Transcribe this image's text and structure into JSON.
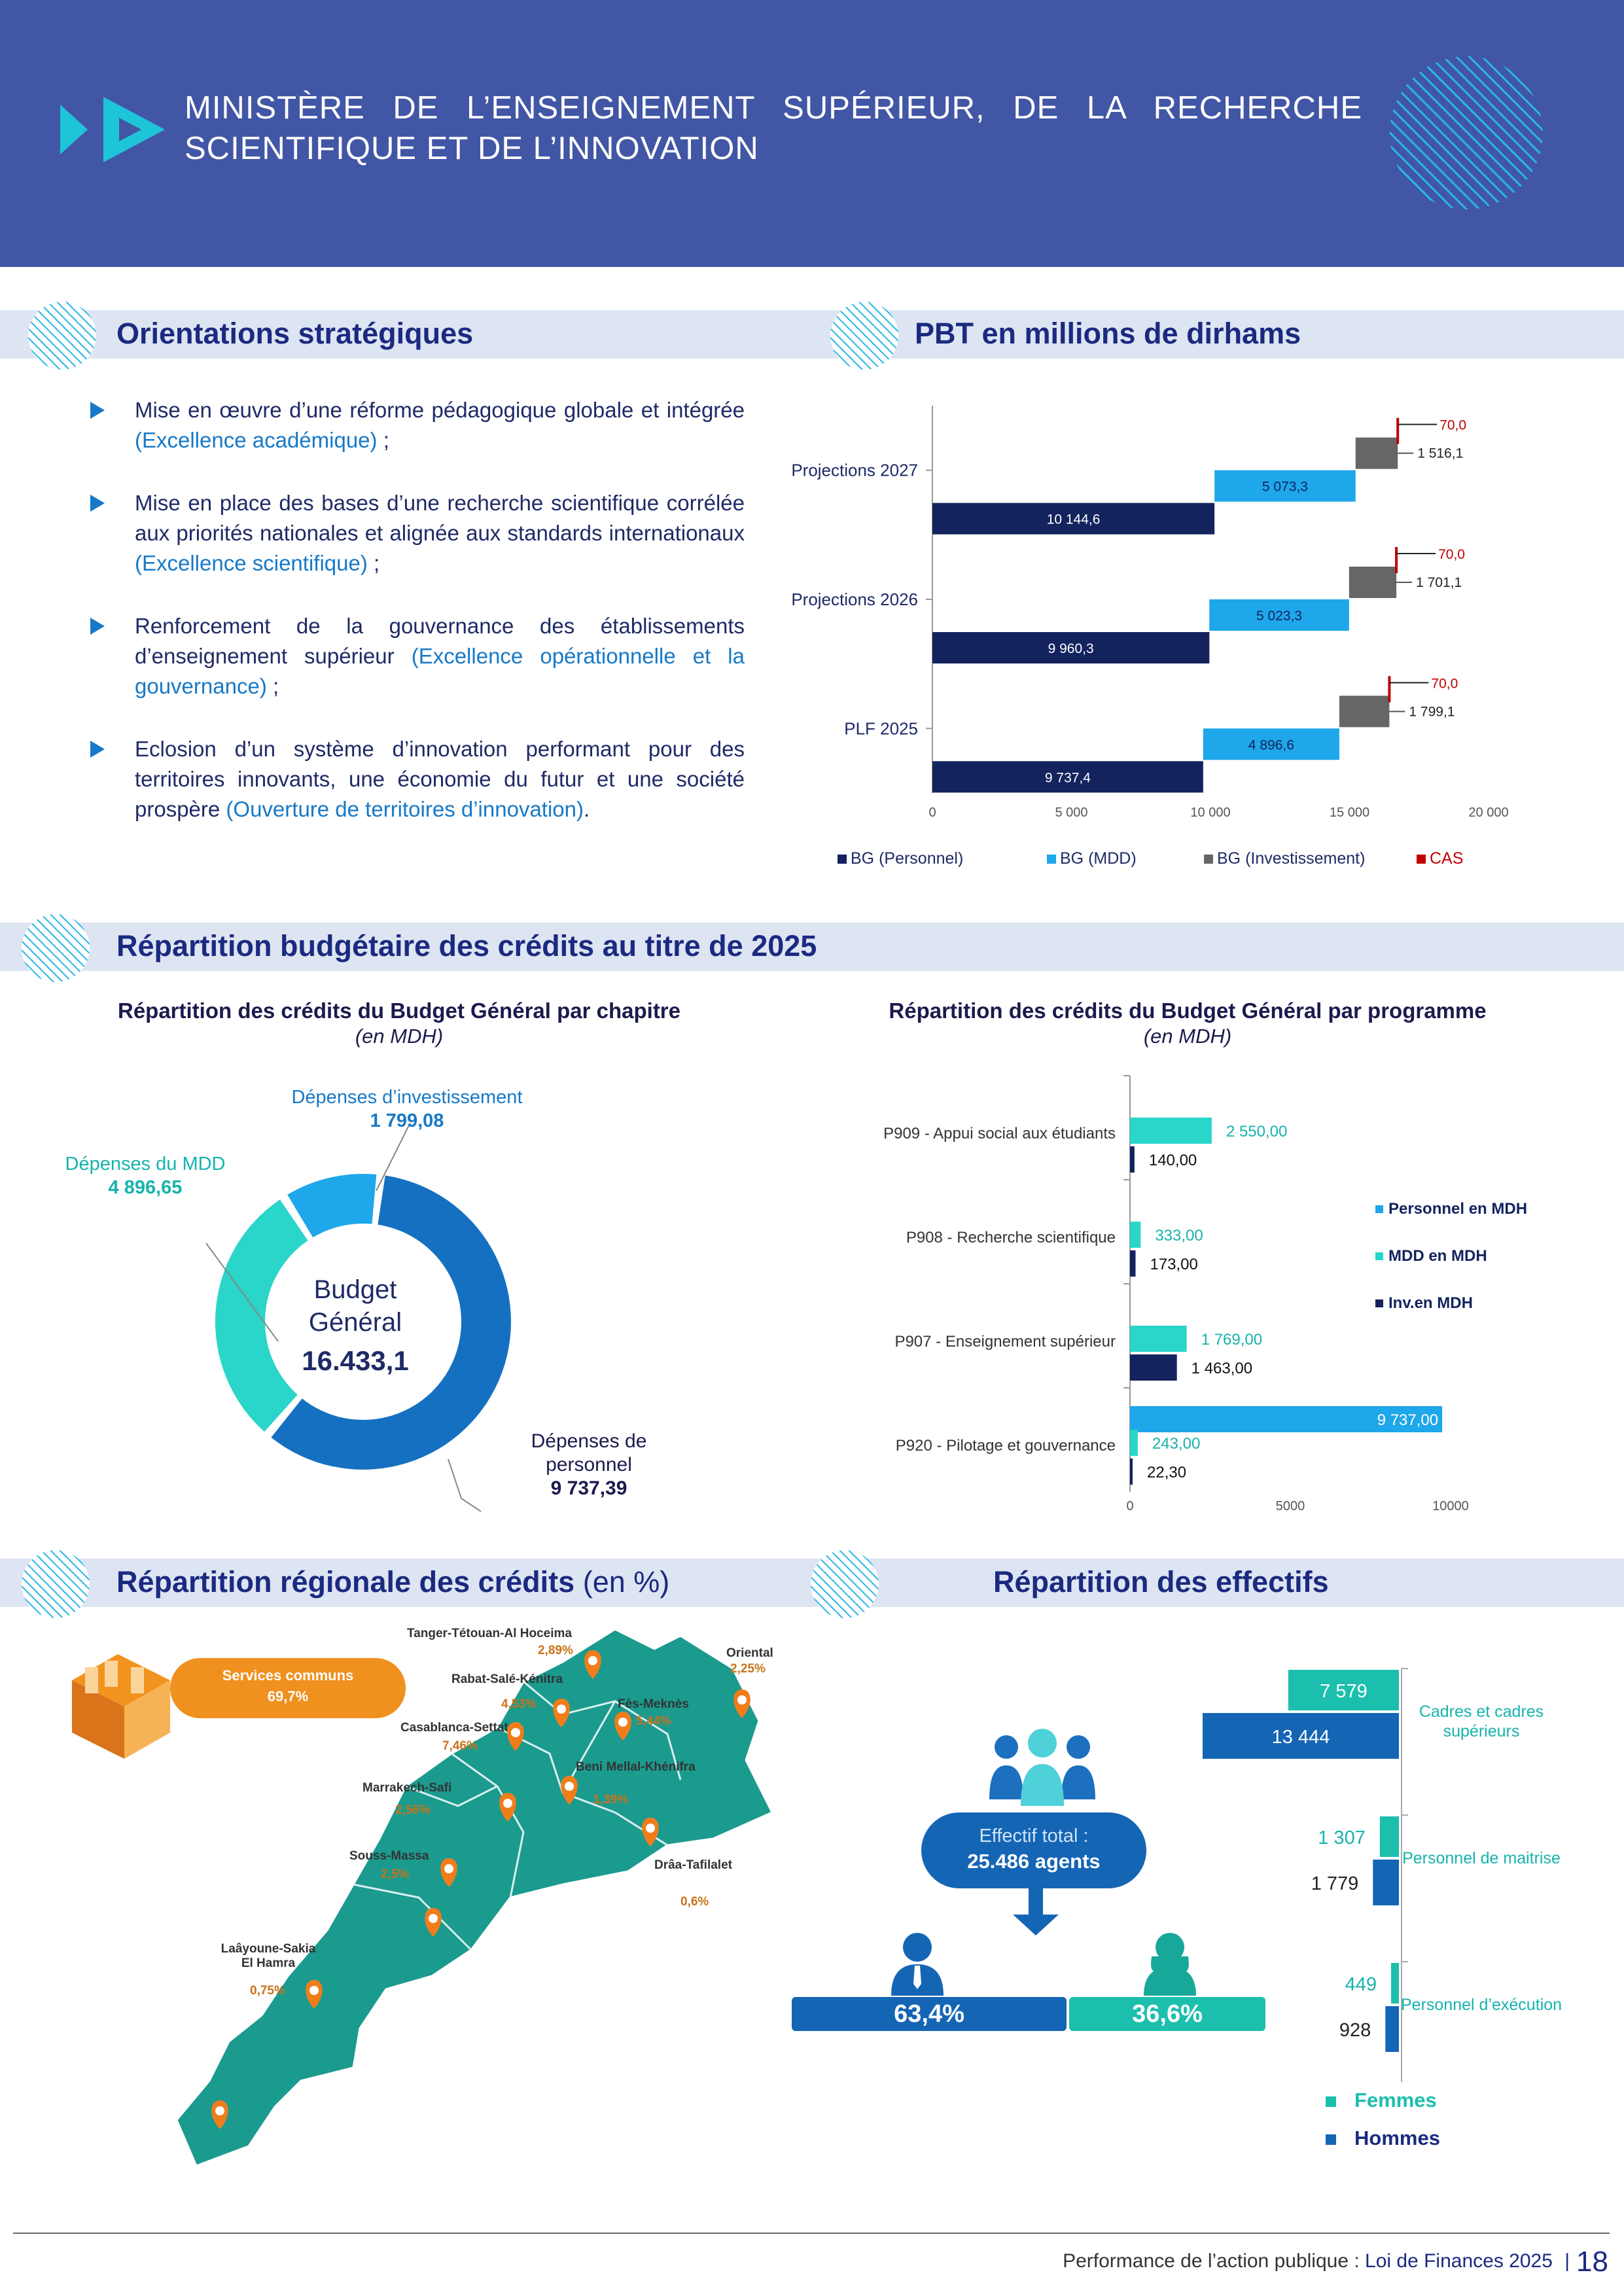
{
  "header": {
    "title": "MINISTÈRE DE L’ENSEIGNEMENT SUPÉRIEUR, DE LA RECHERCHE SCIENTIFIQUE ET DE L’INNOVATION"
  },
  "sections": {
    "orientations": "Orientations stratégiques",
    "pbt": "PBT en millions de dirhams",
    "repartition": "Répartition budgétaire des crédits au titre de 2025",
    "regional": "Répartition régionale des crédits",
    "regional_unit": "(en %)",
    "effectifs": "Répartition des effectifs"
  },
  "orientations": [
    {
      "text": "Mise en œuvre d’une réforme pédagogique globale et intégrée ",
      "highlight": "(Excellence académique)",
      "suffix": " ;"
    },
    {
      "text": "Mise en place des bases d’une recherche scientifique corrélée aux priorités nationales et alignée aux standards internationaux ",
      "highlight": "(Excellence scientifique)",
      "suffix": " ;"
    },
    {
      "text": "Renforcement de la gouvernance des établissements d’enseignement supérieur ",
      "highlight": "(Excellence opérationnelle et la gouvernance)",
      "suffix": " ;"
    },
    {
      "text": "Eclosion d’un système d’innovation performant pour des territoires innovants, une économie du futur et une société prospère ",
      "highlight": "(Ouverture de territoires d’innovation)",
      "suffix": "."
    }
  ],
  "colors": {
    "header": "#4256a6",
    "personnel": "#13235e",
    "mdd": "#1ea7ea",
    "invest": "#666666",
    "cas": "#c00000",
    "teal": "#2ad5c9",
    "blue": "#1779c7"
  },
  "chart_data": [
    {
      "type": "bar",
      "orientation": "horizontal-stacked",
      "categories": [
        "PLF 2025",
        "Projections 2026",
        "Projections 2027"
      ],
      "series": [
        {
          "name": "BG (Personnel)",
          "values": [
            9737.4,
            9960.3,
            10144.6
          ],
          "labels": [
            "9 737,4",
            "9 960,3",
            "10 144,6"
          ]
        },
        {
          "name": "BG (MDD)",
          "values": [
            4896.6,
            5023.3,
            5073.3
          ],
          "labels": [
            "4 896,6",
            "5 023,3",
            "5 073,3"
          ]
        },
        {
          "name": "BG (Investissement)",
          "values": [
            1799.1,
            1701.1,
            1516.1
          ],
          "labels": [
            "1 799,1",
            "1 701,1",
            "1 516,1"
          ]
        },
        {
          "name": "CAS",
          "values": [
            70.0,
            70.0,
            70.0
          ],
          "labels": [
            "70,0",
            "70,0",
            "70,0"
          ]
        }
      ],
      "xlim": [
        0,
        20000
      ],
      "xticks": [
        "0",
        "5 000",
        "10 000",
        "15 000",
        "20 000"
      ],
      "legend": "bottom"
    },
    {
      "type": "pie",
      "variant": "donut",
      "title": "Répartition des crédits du Budget Général par chapitre",
      "unit": "(en MDH)",
      "center_label": [
        "Budget",
        "Général"
      ],
      "center_value": "16.433,1",
      "slices": [
        {
          "name": "Dépenses de personnel",
          "value": 9737.39,
          "label": "9 737,39"
        },
        {
          "name": "Dépenses du MDD",
          "value": 4896.65,
          "label": "4 896,65"
        },
        {
          "name": "Dépenses d’investissement",
          "value": 1799.08,
          "label": "1 799,08"
        }
      ]
    },
    {
      "type": "bar",
      "orientation": "horizontal-grouped",
      "title": "Répartition des crédits du Budget Général par programme",
      "unit": "(en MDH)",
      "categories": [
        "P909 - Appui social aux étudiants",
        "P908 - Recherche scientifique",
        "P907 - Enseignement supérieur",
        "P920 - Pilotage et gouvernance"
      ],
      "series": [
        {
          "name": "Personnel en MDH",
          "values": [
            null,
            null,
            null,
            9737.0
          ],
          "labels": [
            "",
            "",
            "",
            "9 737,00"
          ]
        },
        {
          "name": "MDD en MDH",
          "values": [
            2550.0,
            333.0,
            1769.0,
            243.0
          ],
          "labels": [
            "2 550,00",
            "333,00",
            "1 769,00",
            "243,00"
          ]
        },
        {
          "name": "Inv.en MDH",
          "values": [
            140.0,
            173.0,
            1463.0,
            22.3
          ],
          "labels": [
            "140,00",
            "173,00",
            "1 463,00",
            "22,30"
          ]
        }
      ],
      "xlim": [
        0,
        10000
      ],
      "xticks": [
        "0",
        "5000",
        "10000"
      ],
      "legend": "right"
    },
    {
      "type": "bar",
      "orientation": "horizontal-grouped",
      "categories": [
        "Cadres et cadres supérieurs",
        "Personnel de maitrise",
        "Personnel d’exécution"
      ],
      "series": [
        {
          "name": "Femmes",
          "values": [
            7579,
            1307,
            449
          ],
          "labels": [
            "7 579",
            "1 307",
            "449"
          ]
        },
        {
          "name": "Hommes",
          "values": [
            13444,
            1779,
            928
          ],
          "labels": [
            "13 444",
            "1 779",
            "928"
          ]
        }
      ],
      "legend": "bottom"
    }
  ],
  "regional": {
    "services_communs": {
      "label": "Services communs",
      "pct": "69,7%"
    },
    "regions": [
      {
        "name": "Tanger-Tétouan-Al Hoceima",
        "pct": "2,89%"
      },
      {
        "name": "Oriental",
        "pct": "2,25%"
      },
      {
        "name": "Rabat-Salé-Kénitra",
        "pct": "4,53%"
      },
      {
        "name": "Fès-Meknès",
        "pct": "5,44%"
      },
      {
        "name": "Casablanca-Settat",
        "pct": "7,46%"
      },
      {
        "name": "Beni Mellal-Khénifra",
        "pct": "1,39%"
      },
      {
        "name": "Marrakech-Safi",
        "pct": "2,56%"
      },
      {
        "name": "Drâa-Tafilalet",
        "pct": "0,6%"
      },
      {
        "name": "Souss-Massa",
        "pct": "2,5%"
      },
      {
        "name": "Laâyoune-Sakia El Hamra",
        "pct": "0,75%"
      }
    ]
  },
  "effectifs": {
    "total_label": "Effectif total :",
    "total_value": "25.486 agents",
    "hommes_pct": "63,4%",
    "femmes_pct": "36,6%"
  },
  "footer": {
    "prefix": "Performance de l’action publique : ",
    "bold": "Loi de Finances 2025",
    "page": "18"
  }
}
